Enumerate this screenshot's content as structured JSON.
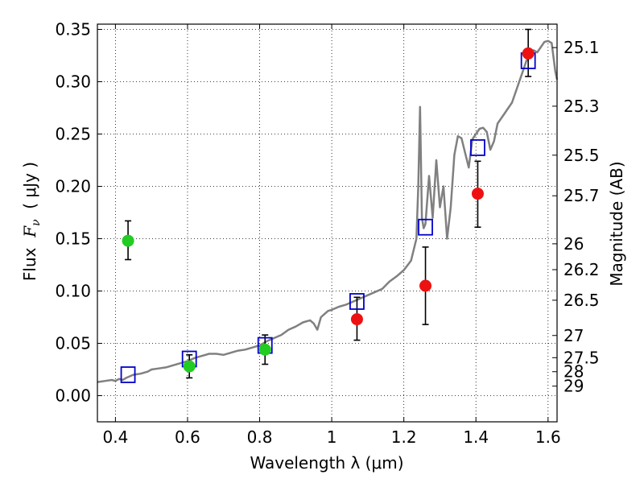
{
  "chart_data": {
    "type": "scatter",
    "title": "",
    "xlabel": "Wavelength  λ (μm)",
    "ylabel_left": {
      "prefix": "Flux  ",
      "symbol": "F",
      "subscript": "ν",
      "unit": "  ( μJy )"
    },
    "ylabel_right": "Magnitude (AB)",
    "xlim": [
      0.35,
      1.625
    ],
    "ylim": [
      -0.025,
      0.355
    ],
    "x_ticks": [
      {
        "value": 0.4,
        "label": "0.4"
      },
      {
        "value": 0.6,
        "label": "0.6"
      },
      {
        "value": 0.8,
        "label": "0.8"
      },
      {
        "value": 1.0,
        "label": "1"
      },
      {
        "value": 1.2,
        "label": "1.2"
      },
      {
        "value": 1.4,
        "label": "1.4"
      },
      {
        "value": 1.6,
        "label": "1.6"
      }
    ],
    "y_ticks": [
      {
        "value": 0.0,
        "label": "0.00"
      },
      {
        "value": 0.05,
        "label": "0.05"
      },
      {
        "value": 0.1,
        "label": "0.10"
      },
      {
        "value": 0.15,
        "label": "0.15"
      },
      {
        "value": 0.2,
        "label": "0.20"
      },
      {
        "value": 0.25,
        "label": "0.25"
      },
      {
        "value": 0.3,
        "label": "0.30"
      },
      {
        "value": 0.35,
        "label": "0.35"
      }
    ],
    "right_ticks": [
      {
        "flux": 0.3326,
        "label": "25.1"
      },
      {
        "flux": 0.2766,
        "label": "25.3"
      },
      {
        "flux": 0.2298,
        "label": "25.5"
      },
      {
        "flux": 0.191,
        "label": "25.7"
      },
      {
        "flux": 0.1451,
        "label": "26"
      },
      {
        "flux": 0.1204,
        "label": "26.2"
      },
      {
        "flux": 0.0912,
        "label": "26.5"
      },
      {
        "flux": 0.0575,
        "label": "27"
      },
      {
        "flux": 0.0363,
        "label": "27.5"
      },
      {
        "flux": 0.0229,
        "label": "28"
      },
      {
        "flux": 0.0091,
        "label": "29"
      }
    ],
    "grid": true,
    "grid_style": "dotted",
    "series": [
      {
        "kind": "line",
        "color": "#808080",
        "x": [
          0.35,
          0.37,
          0.39,
          0.4,
          0.41,
          0.42,
          0.43,
          0.45,
          0.47,
          0.49,
          0.5,
          0.52,
          0.54,
          0.56,
          0.58,
          0.6,
          0.62,
          0.64,
          0.66,
          0.68,
          0.7,
          0.72,
          0.74,
          0.76,
          0.78,
          0.8,
          0.82,
          0.84,
          0.86,
          0.88,
          0.9,
          0.92,
          0.94,
          0.95,
          0.96,
          0.97,
          0.98,
          0.99,
          1.0,
          1.02,
          1.04,
          1.06,
          1.08,
          1.1,
          1.12,
          1.14,
          1.16,
          1.18,
          1.2,
          1.22,
          1.235,
          1.24,
          1.245,
          1.25,
          1.255,
          1.26,
          1.27,
          1.28,
          1.29,
          1.3,
          1.31,
          1.32,
          1.33,
          1.34,
          1.35,
          1.36,
          1.37,
          1.38,
          1.39,
          1.4,
          1.41,
          1.42,
          1.43,
          1.44,
          1.45,
          1.46,
          1.47,
          1.48,
          1.49,
          1.5,
          1.51,
          1.52,
          1.53,
          1.54,
          1.55,
          1.56,
          1.57,
          1.58,
          1.59,
          1.6,
          1.61,
          1.62,
          1.625
        ],
        "y": [
          0.013,
          0.014,
          0.015,
          0.014,
          0.016,
          0.015,
          0.017,
          0.02,
          0.021,
          0.023,
          0.025,
          0.026,
          0.027,
          0.029,
          0.031,
          0.033,
          0.036,
          0.038,
          0.04,
          0.04,
          0.039,
          0.041,
          0.043,
          0.044,
          0.046,
          0.048,
          0.052,
          0.055,
          0.058,
          0.063,
          0.066,
          0.07,
          0.072,
          0.069,
          0.063,
          0.075,
          0.078,
          0.081,
          0.082,
          0.085,
          0.087,
          0.09,
          0.093,
          0.096,
          0.099,
          0.102,
          0.109,
          0.114,
          0.12,
          0.129,
          0.15,
          0.2,
          0.276,
          0.17,
          0.16,
          0.164,
          0.21,
          0.17,
          0.225,
          0.18,
          0.2,
          0.15,
          0.18,
          0.23,
          0.248,
          0.246,
          0.232,
          0.218,
          0.245,
          0.25,
          0.255,
          0.256,
          0.252,
          0.235,
          0.243,
          0.26,
          0.265,
          0.27,
          0.275,
          0.28,
          0.29,
          0.3,
          0.31,
          0.32,
          0.325,
          0.33,
          0.328,
          0.333,
          0.338,
          0.339,
          0.337,
          0.31,
          0.302
        ]
      },
      {
        "kind": "squares",
        "color": "#0000cc",
        "x": [
          0.435,
          0.605,
          0.815,
          1.07,
          1.26,
          1.405,
          1.545
        ],
        "y": [
          0.02,
          0.035,
          0.048,
          0.09,
          0.161,
          0.237,
          0.32
        ]
      },
      {
        "kind": "points",
        "color": "#22cc22",
        "x": [
          0.435,
          0.605,
          0.815
        ],
        "y": [
          0.148,
          0.028,
          0.044
        ],
        "yerr_low": [
          0.13,
          0.017,
          0.03
        ],
        "yerr_high": [
          0.167,
          0.039,
          0.058
        ]
      },
      {
        "kind": "points",
        "color": "#ee1111",
        "x": [
          1.07,
          1.26,
          1.405,
          1.545
        ],
        "y": [
          0.073,
          0.105,
          0.193,
          0.327
        ],
        "yerr_low": [
          0.053,
          0.068,
          0.161,
          0.305
        ],
        "yerr_high": [
          0.094,
          0.142,
          0.224,
          0.35
        ]
      }
    ]
  }
}
